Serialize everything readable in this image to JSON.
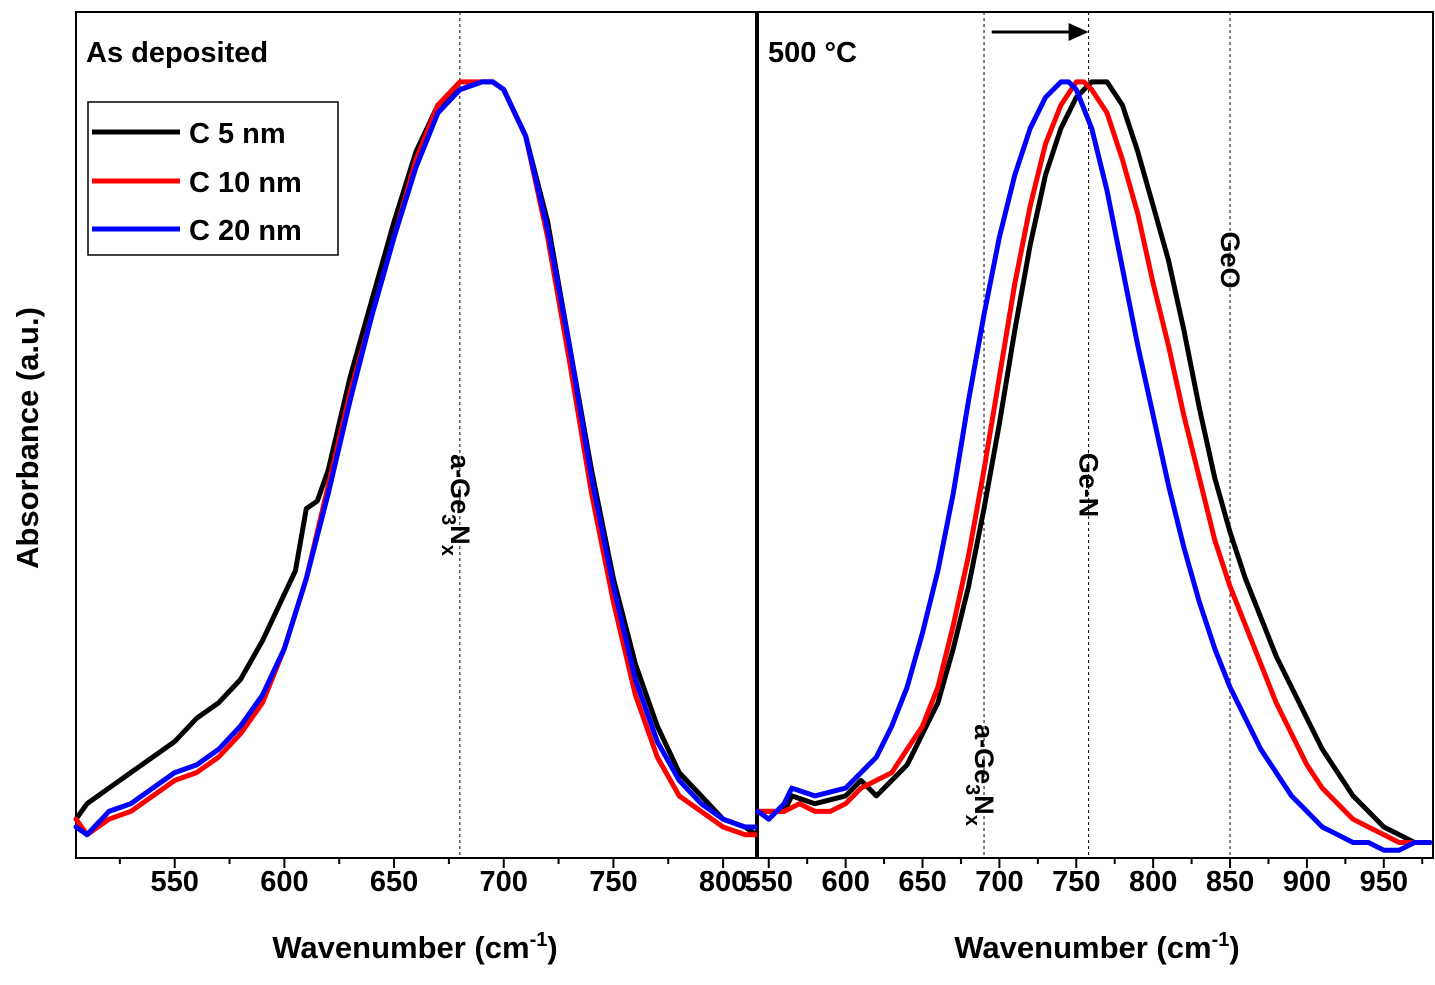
{
  "figure": {
    "ylabel": "Absorbance (a.u.)",
    "xlabel_main": "Wavenumber (cm",
    "xlabel_sup": "-1",
    "xlabel_end": ")"
  },
  "legend": [
    {
      "name": "C 5 nm",
      "color": "#000000"
    },
    {
      "name": "C 10 nm",
      "color": "#ff0000"
    },
    {
      "name": "C 20 nm",
      "color": "#0000ff"
    }
  ],
  "chart_data": [
    {
      "type": "line",
      "title": "As deposited",
      "xlabel": "Wavenumber (cm-1)",
      "ylabel": "Absorbance (a.u.)",
      "xlim": [
        505,
        815
      ],
      "ylim": [
        0,
        1.09
      ],
      "xticks": [
        550,
        600,
        650,
        700,
        750,
        800
      ],
      "reference_lines": [
        {
          "x": 680,
          "label_main": "a-Ge",
          "sub1": "3",
          "label_mid": "N",
          "sub2": "x"
        }
      ],
      "series": [
        {
          "name": "C 5 nm",
          "color": "#000000",
          "x": [
            505,
            510,
            520,
            530,
            540,
            550,
            560,
            570,
            580,
            590,
            600,
            605,
            610,
            615,
            620,
            625,
            630,
            640,
            650,
            660,
            670,
            680,
            690,
            695,
            700,
            710,
            720,
            730,
            740,
            750,
            760,
            770,
            780,
            790,
            800,
            810,
            815
          ],
          "y": [
            0.05,
            0.07,
            0.09,
            0.11,
            0.13,
            0.15,
            0.18,
            0.2,
            0.23,
            0.28,
            0.34,
            0.37,
            0.45,
            0.46,
            0.5,
            0.56,
            0.62,
            0.72,
            0.82,
            0.91,
            0.97,
            0.99,
            1.0,
            1.0,
            0.99,
            0.93,
            0.82,
            0.66,
            0.5,
            0.36,
            0.25,
            0.17,
            0.11,
            0.08,
            0.05,
            0.04,
            0.03
          ]
        },
        {
          "name": "C 10 nm",
          "color": "#ff0000",
          "x": [
            505,
            510,
            520,
            530,
            540,
            550,
            560,
            570,
            580,
            590,
            600,
            610,
            620,
            630,
            640,
            650,
            660,
            670,
            680,
            690,
            695,
            700,
            710,
            720,
            730,
            740,
            750,
            760,
            770,
            780,
            790,
            800,
            810,
            815
          ],
          "y": [
            0.05,
            0.03,
            0.05,
            0.06,
            0.08,
            0.1,
            0.11,
            0.13,
            0.16,
            0.2,
            0.27,
            0.36,
            0.48,
            0.6,
            0.7,
            0.8,
            0.9,
            0.97,
            1.0,
            1.0,
            1.0,
            0.99,
            0.93,
            0.8,
            0.64,
            0.47,
            0.33,
            0.21,
            0.13,
            0.08,
            0.06,
            0.04,
            0.03,
            0.03
          ]
        },
        {
          "name": "C 20 nm",
          "color": "#0000ff",
          "x": [
            505,
            510,
            520,
            530,
            540,
            550,
            560,
            570,
            580,
            590,
            600,
            610,
            620,
            630,
            640,
            650,
            660,
            670,
            680,
            690,
            695,
            700,
            710,
            720,
            730,
            740,
            750,
            760,
            770,
            780,
            790,
            800,
            810,
            815
          ],
          "y": [
            0.04,
            0.03,
            0.06,
            0.07,
            0.09,
            0.11,
            0.12,
            0.14,
            0.17,
            0.21,
            0.27,
            0.36,
            0.47,
            0.59,
            0.7,
            0.8,
            0.89,
            0.96,
            0.99,
            1.0,
            1.0,
            0.99,
            0.93,
            0.81,
            0.66,
            0.49,
            0.35,
            0.23,
            0.15,
            0.1,
            0.07,
            0.05,
            0.04,
            0.04
          ]
        }
      ]
    },
    {
      "type": "line",
      "title": "500 °C",
      "xlabel": "Wavenumber (cm-1)",
      "xlim": [
        543,
        982
      ],
      "ylim": [
        0,
        1.09
      ],
      "xticks": [
        550,
        600,
        650,
        700,
        750,
        800,
        850,
        900,
        950
      ],
      "reference_lines": [
        {
          "x": 690,
          "label_main": "a-Ge",
          "sub1": "3",
          "label_mid": "N",
          "sub2": "x"
        },
        {
          "x": 758,
          "label_main": "Ge-N"
        },
        {
          "x": 850,
          "label_main": "GeO"
        }
      ],
      "arrow": {
        "x_from": 695,
        "x_to": 758
      },
      "series": [
        {
          "name": "C 5 nm",
          "color": "#000000",
          "x": [
            543,
            560,
            565,
            580,
            600,
            610,
            620,
            630,
            640,
            650,
            660,
            670,
            680,
            690,
            700,
            710,
            720,
            730,
            740,
            750,
            760,
            770,
            780,
            790,
            800,
            810,
            820,
            830,
            840,
            850,
            860,
            870,
            880,
            890,
            900,
            910,
            920,
            930,
            940,
            950,
            960,
            970,
            980
          ],
          "y": [
            0.06,
            0.06,
            0.08,
            0.07,
            0.08,
            0.1,
            0.08,
            0.1,
            0.12,
            0.16,
            0.2,
            0.27,
            0.35,
            0.45,
            0.56,
            0.68,
            0.79,
            0.88,
            0.94,
            0.98,
            1.0,
            1.0,
            0.97,
            0.91,
            0.84,
            0.77,
            0.68,
            0.58,
            0.49,
            0.42,
            0.36,
            0.31,
            0.26,
            0.22,
            0.18,
            0.14,
            0.11,
            0.08,
            0.06,
            0.04,
            0.03,
            0.02,
            0.02
          ]
        },
        {
          "name": "C 10 nm",
          "color": "#ff0000",
          "x": [
            543,
            560,
            570,
            580,
            590,
            600,
            610,
            620,
            630,
            640,
            650,
            660,
            670,
            680,
            690,
            700,
            710,
            720,
            730,
            740,
            750,
            755,
            760,
            770,
            780,
            790,
            800,
            810,
            820,
            830,
            840,
            850,
            860,
            870,
            880,
            890,
            900,
            910,
            920,
            930,
            940,
            950,
            960,
            970,
            980
          ],
          "y": [
            0.06,
            0.06,
            0.07,
            0.06,
            0.06,
            0.07,
            0.09,
            0.1,
            0.11,
            0.14,
            0.17,
            0.22,
            0.3,
            0.39,
            0.5,
            0.62,
            0.74,
            0.84,
            0.92,
            0.97,
            1.0,
            1.0,
            0.99,
            0.96,
            0.9,
            0.83,
            0.74,
            0.66,
            0.57,
            0.49,
            0.41,
            0.35,
            0.3,
            0.25,
            0.2,
            0.16,
            0.12,
            0.09,
            0.07,
            0.05,
            0.04,
            0.03,
            0.02,
            0.02,
            0.02
          ]
        },
        {
          "name": "C 20 nm",
          "color": "#0000ff",
          "x": [
            543,
            550,
            560,
            565,
            580,
            600,
            610,
            620,
            630,
            640,
            650,
            660,
            670,
            680,
            690,
            700,
            710,
            720,
            730,
            740,
            745,
            750,
            760,
            770,
            780,
            790,
            800,
            810,
            820,
            830,
            840,
            850,
            860,
            870,
            880,
            890,
            900,
            910,
            920,
            930,
            940,
            950,
            960,
            970,
            980
          ],
          "y": [
            0.06,
            0.05,
            0.07,
            0.09,
            0.08,
            0.09,
            0.11,
            0.13,
            0.17,
            0.22,
            0.29,
            0.37,
            0.47,
            0.59,
            0.7,
            0.8,
            0.88,
            0.94,
            0.98,
            1.0,
            1.0,
            0.99,
            0.94,
            0.86,
            0.76,
            0.66,
            0.57,
            0.48,
            0.4,
            0.33,
            0.27,
            0.22,
            0.18,
            0.14,
            0.11,
            0.08,
            0.06,
            0.04,
            0.03,
            0.02,
            0.02,
            0.01,
            0.01,
            0.02,
            0.02
          ]
        }
      ]
    }
  ]
}
